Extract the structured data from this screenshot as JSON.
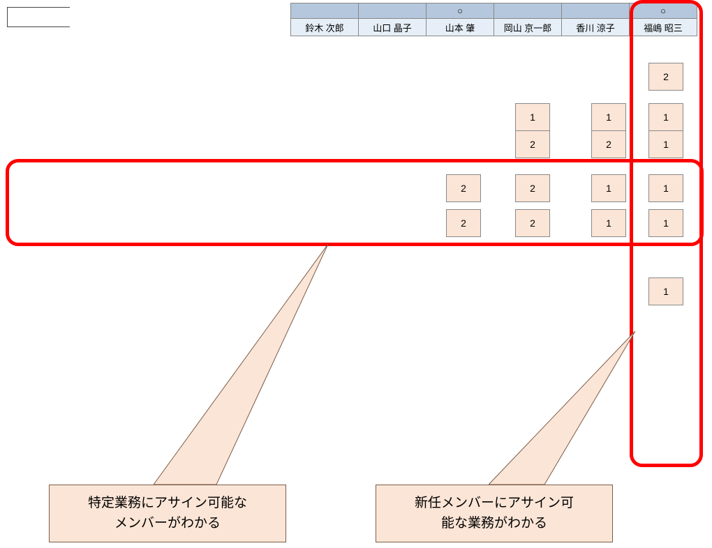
{
  "header": {
    "marks": [
      "",
      "",
      "○",
      "",
      "",
      "○"
    ],
    "names": [
      "鈴木 次郎",
      "山口 晶子",
      "山本 肇",
      "岡山 京一郎",
      "香川 涼子",
      "福嶋 昭三"
    ]
  },
  "grid": {
    "rows": [
      [
        null,
        null,
        null,
        "2"
      ],
      [
        "1",
        null,
        "1",
        "1"
      ],
      [
        "2",
        null,
        "2",
        "1"
      ],
      [
        "2",
        "2",
        "1",
        "1"
      ],
      [
        "2",
        "2",
        "1",
        "1"
      ],
      [
        null,
        null,
        null,
        null
      ],
      [
        null,
        null,
        null,
        "1"
      ]
    ],
    "row_offsets": [
      3,
      1,
      1,
      0,
      0,
      0,
      3
    ],
    "cell_bg": "#fbe5d6",
    "border_color": "#888888"
  },
  "callouts": {
    "left": "特定業務にアサイン可能な\nメンバーがわかる",
    "right": "新任メンバーにアサイン可\n能な業務がわかる"
  },
  "colors": {
    "header_top_bg": "#b4c7dc",
    "header_bot_bg": "#e6eff7",
    "highlight": "#ff0000",
    "callout_bg": "#fbe5d6",
    "callout_border": "#7a5c48"
  }
}
